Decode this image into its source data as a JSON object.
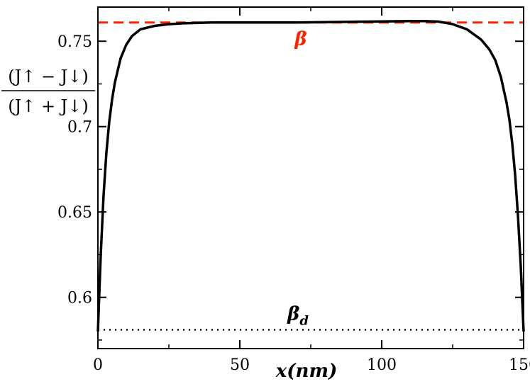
{
  "chart_data": {
    "type": "line",
    "xlabel": "x(nm)",
    "ylabel_numerator": "(J↑ − J↓)",
    "ylabel_denominator": "(J↑ + J↓)",
    "xlim": [
      0,
      150
    ],
    "ylim": [
      0.57,
      0.77
    ],
    "xticks": [
      0,
      50,
      100,
      150
    ],
    "xtick_labels": [
      "0",
      "50",
      "100",
      "150"
    ],
    "yticks": [
      0.6,
      0.65,
      0.7,
      0.75
    ],
    "ytick_labels": [
      "0.6",
      "0.65",
      "0.7",
      "0.75"
    ],
    "grid": false,
    "series": [
      {
        "style": "solid",
        "color": "#000000",
        "x": [
          0,
          1,
          2,
          3,
          4,
          5,
          6,
          8,
          10,
          12,
          15,
          20,
          25,
          30,
          40,
          50,
          60,
          70,
          80,
          90,
          100,
          110,
          115,
          120,
          125,
          130,
          135,
          138,
          140,
          142,
          144,
          145,
          146,
          147,
          148,
          149,
          150
        ],
        "y": [
          0.58,
          0.625,
          0.66,
          0.685,
          0.703,
          0.716,
          0.726,
          0.74,
          0.748,
          0.753,
          0.757,
          0.759,
          0.76,
          0.7605,
          0.761,
          0.761,
          0.761,
          0.761,
          0.7612,
          0.7614,
          0.7616,
          0.7618,
          0.7618,
          0.7615,
          0.76,
          0.757,
          0.751,
          0.745,
          0.739,
          0.729,
          0.714,
          0.704,
          0.69,
          0.672,
          0.648,
          0.618,
          0.58
        ]
      }
    ],
    "reference_lines": [
      {
        "label": "β",
        "y": 0.761,
        "style": "dashed",
        "color": "#ff2200"
      },
      {
        "label": "β_d",
        "y": 0.581,
        "style": "dotted",
        "color": "#000000"
      }
    ]
  }
}
